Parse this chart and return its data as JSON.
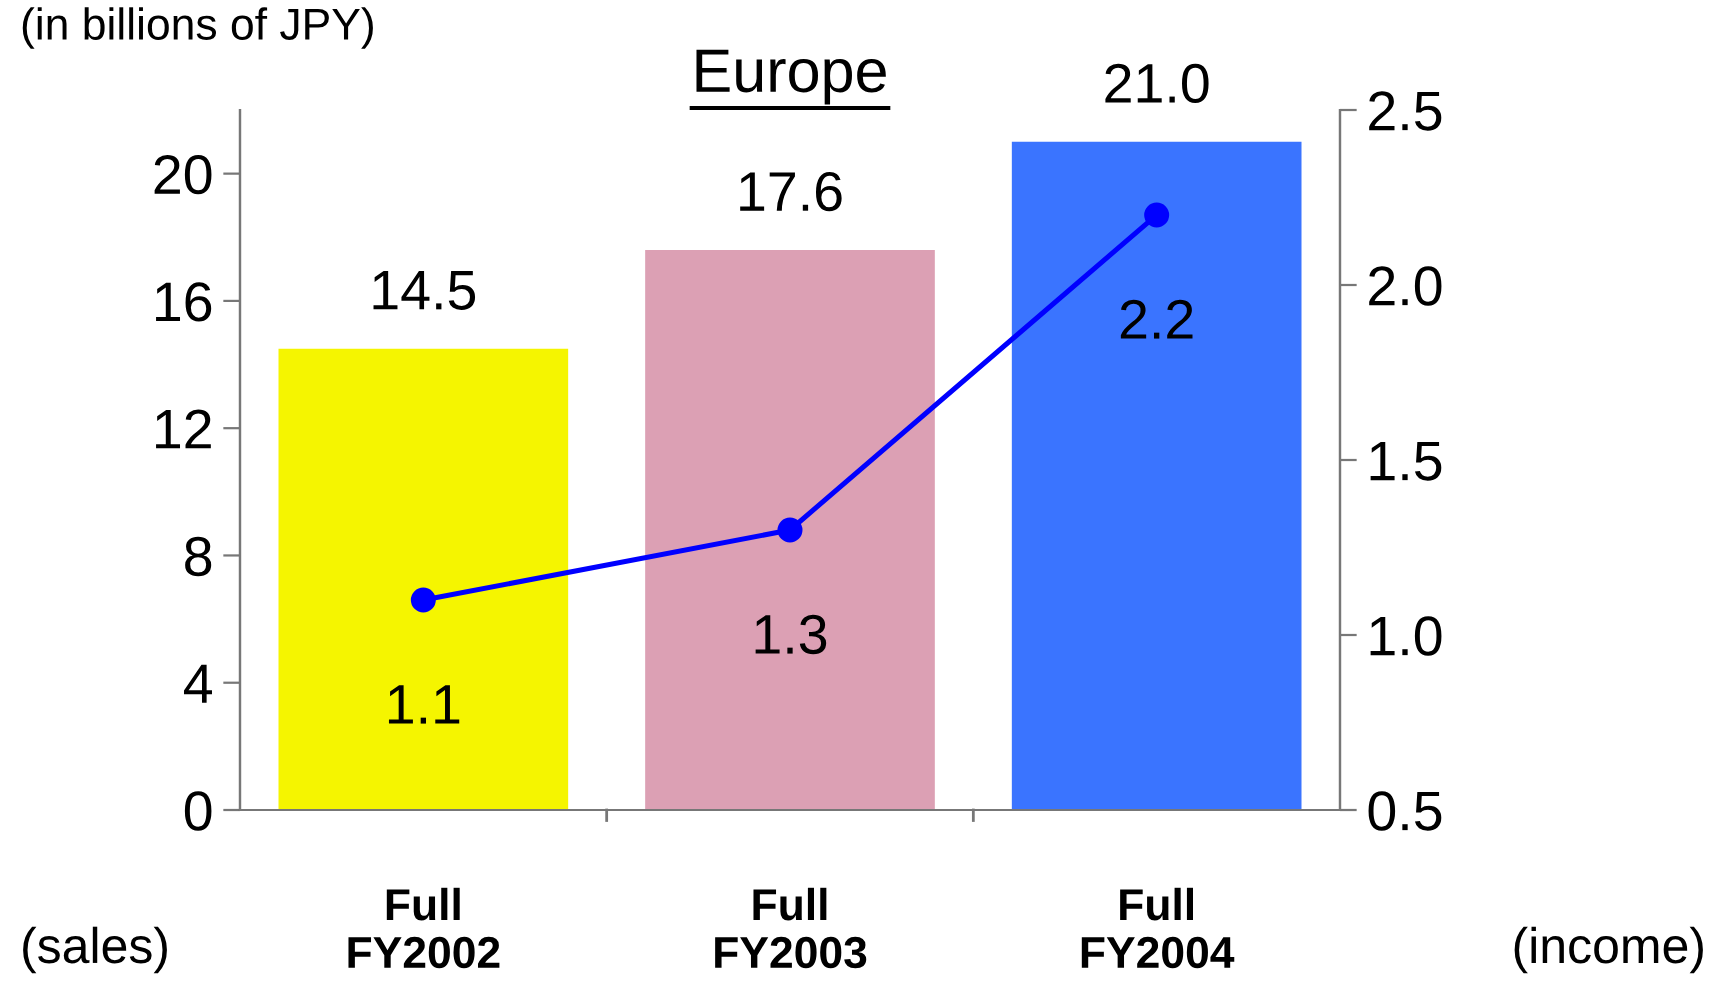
{
  "chart_data": {
    "type": "bar",
    "title": "Europe",
    "categories": [
      "Full\nFY2002",
      "Full\nFY2003",
      "Full\nFY2004"
    ],
    "series": [
      {
        "colors": [
          "#f5f500",
          "#dca0b4",
          "#3a74ff"
        ],
        "values": [
          14.5,
          17.6,
          21.0
        ],
        "value_labels": [
          "14.5",
          "17.6",
          "21.0"
        ]
      },
      {
        "type": "line",
        "axis": "y2",
        "color": "#0000ff",
        "marker": "circle",
        "values": [
          1.1,
          1.3,
          2.2
        ],
        "value_labels": [
          "1.1",
          "1.3",
          "2.2"
        ]
      }
    ],
    "ylim": [
      0,
      22
    ],
    "yticks": [
      0,
      4,
      8,
      12,
      16,
      20
    ],
    "y2lim": [
      0.5,
      2.5
    ],
    "y2ticks": [
      {
        "value": 0.5,
        "label": "0.5"
      },
      {
        "value": 1.0,
        "label": "1.0"
      },
      {
        "value": 1.5,
        "label": "1.5"
      },
      {
        "value": 2.0,
        "label": "2.0"
      },
      {
        "value": 2.5,
        "label": "2.5"
      }
    ],
    "ylabel": "(sales)",
    "y2label": "(income)",
    "annotations": [
      "(in billions of JPY)"
    ],
    "grid": false,
    "legend": false
  }
}
